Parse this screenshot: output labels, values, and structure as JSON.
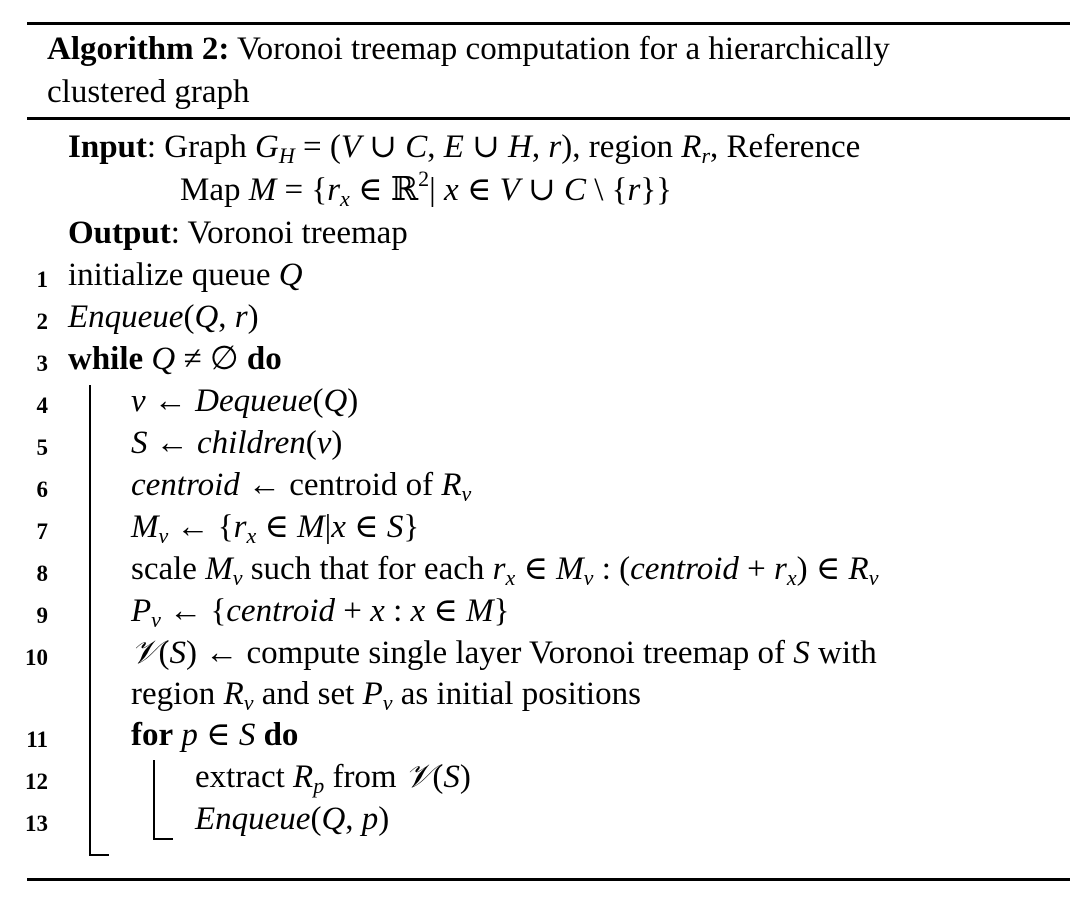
{
  "algorithm": {
    "label": "Algorithm 2:",
    "caption_line1": " Voronoi treemap computation for a hierarchically",
    "caption_line2": "clustered graph"
  },
  "input": {
    "keyword": "Input",
    "line1": ": Graph G_H = (V ∪ C, E ∪ H, r), region R_r, Reference",
    "line2": "Map M = {r_x ∈ ℝ² | x ∈ V ∪ C \\ {r}}"
  },
  "output": {
    "keyword": "Output",
    "text": ": Voronoi treemap"
  },
  "lines": [
    {
      "num": "1",
      "text": "initialize queue Q"
    },
    {
      "num": "2",
      "text": "Enqueue(Q, r)"
    },
    {
      "num": "3",
      "text": "while Q ≠ ∅ do"
    },
    {
      "num": "4",
      "text": "v ← Dequeue(Q)"
    },
    {
      "num": "5",
      "text": "S ← children(v)"
    },
    {
      "num": "6",
      "text": "centroid ← centroid of R_v"
    },
    {
      "num": "7",
      "text": "M_v ← {r_x ∈ M | x ∈ S}"
    },
    {
      "num": "8",
      "text": "scale M_v such that for each r_x ∈ M_v : (centroid + r_x) ∈ R_v"
    },
    {
      "num": "9",
      "text": "P_v ← {centroid + x : x ∈ M}"
    },
    {
      "num": "10",
      "text": "𝒱(S) ← compute single layer Voronoi treemap of S with region R_v and set P_v as initial positions"
    },
    {
      "num": "11",
      "text": "for p ∈ S do"
    },
    {
      "num": "12",
      "text": "extract R_p from 𝒱(S)"
    },
    {
      "num": "13",
      "text": "Enqueue(Q, p)"
    }
  ]
}
